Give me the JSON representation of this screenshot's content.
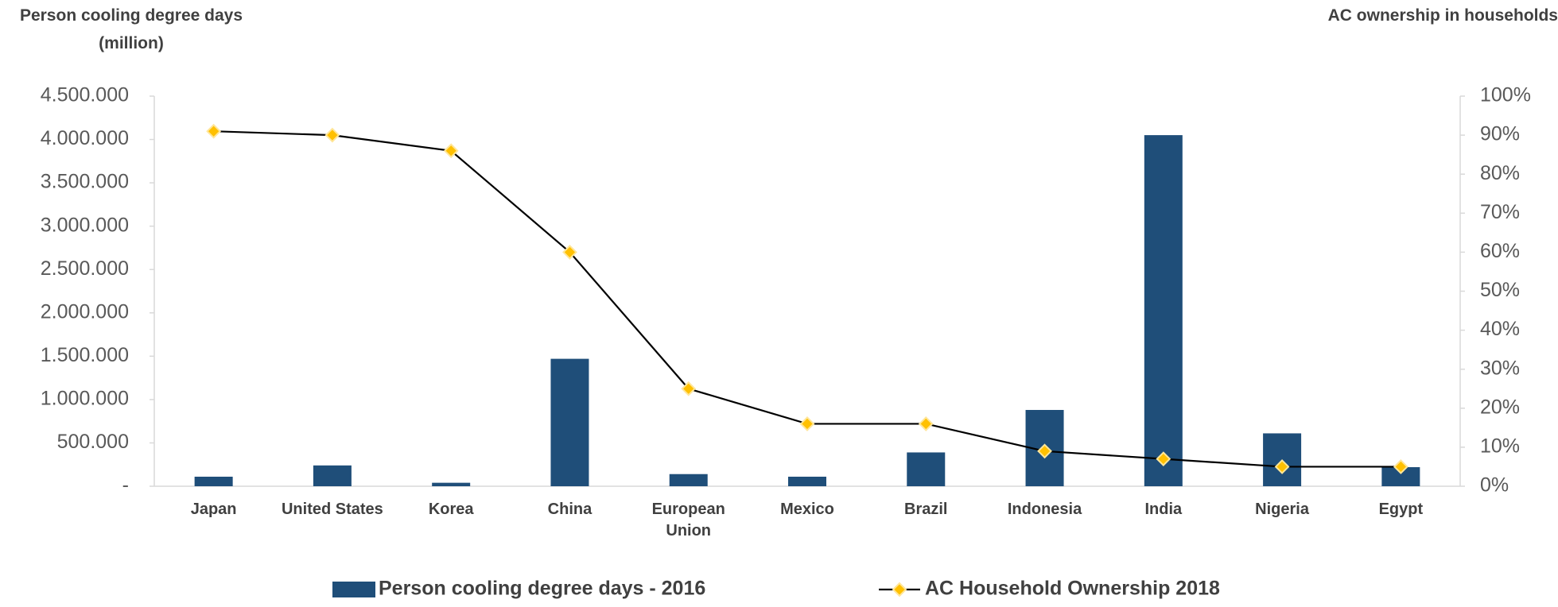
{
  "chart_data": {
    "type": "bar",
    "y_label": "Person cooling degree days (million)",
    "y2_label": "AC ownership in households",
    "categories": [
      "Japan",
      "United States",
      "Korea",
      "China",
      "European Union",
      "Mexico",
      "Brazil",
      "Indonesia",
      "India",
      "Nigeria",
      "Egypt"
    ],
    "series": [
      {
        "name": "Person cooling degree days - 2016",
        "type": "bar",
        "color": "#1f4e79",
        "values": [
          110000,
          240000,
          40000,
          1470000,
          140000,
          110000,
          390000,
          880000,
          4050000,
          610000,
          220000
        ]
      },
      {
        "name": "AC Household Ownership 2018",
        "type": "line",
        "axis": "y2",
        "color": "#000000",
        "marker_color": "#ffc000",
        "values": [
          91,
          90,
          86,
          60,
          25,
          16,
          16,
          9,
          7,
          5,
          5
        ]
      }
    ],
    "ylim": [
      0,
      4500000
    ],
    "yticks": [
      {
        "value": 0,
        "label": "-"
      },
      {
        "value": 500000,
        "label": "500.000"
      },
      {
        "value": 1000000,
        "label": "1.000.000"
      },
      {
        "value": 1500000,
        "label": "1.500.000"
      },
      {
        "value": 2000000,
        "label": "2.000.000"
      },
      {
        "value": 2500000,
        "label": "2.500.000"
      },
      {
        "value": 3000000,
        "label": "3.000.000"
      },
      {
        "value": 3500000,
        "label": "3.500.000"
      },
      {
        "value": 4000000,
        "label": "4.000.000"
      },
      {
        "value": 4500000,
        "label": "4.500.000"
      }
    ],
    "y2lim": [
      0,
      100
    ],
    "y2ticks": [
      {
        "value": 0,
        "label": "0%"
      },
      {
        "value": 10,
        "label": "10%"
      },
      {
        "value": 20,
        "label": "20%"
      },
      {
        "value": 30,
        "label": "30%"
      },
      {
        "value": 40,
        "label": "40%"
      },
      {
        "value": 50,
        "label": "50%"
      },
      {
        "value": 60,
        "label": "60%"
      },
      {
        "value": 70,
        "label": "70%"
      },
      {
        "value": 80,
        "label": "80%"
      },
      {
        "value": 90,
        "label": "90%"
      },
      {
        "value": 100,
        "label": "100%"
      }
    ],
    "legend": "bottom"
  }
}
